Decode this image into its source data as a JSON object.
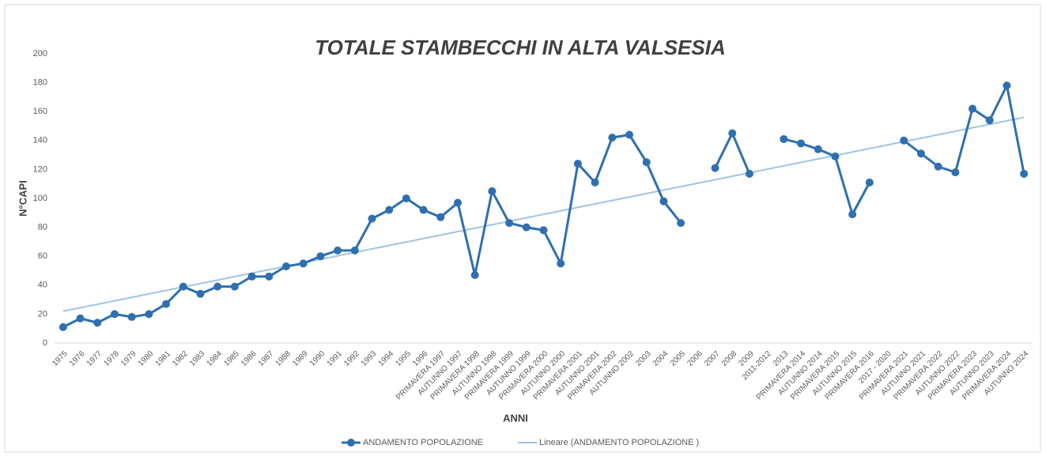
{
  "chart_data": {
    "type": "line",
    "title": "TOTALE STAMBECCHI IN ALTA VALSESIA",
    "x_label": "ANNI",
    "y_label": "N°CAPI",
    "categories": [
      "1975",
      "1976",
      "1977",
      "1978",
      "1979",
      "1980",
      "1981",
      "1982",
      "1983",
      "1984",
      "1985",
      "1986",
      "1987",
      "1988",
      "1989",
      "1990",
      "1991",
      "1992",
      "1993",
      "1994",
      "1995",
      "1996",
      "PRIMAVERA 1997",
      "AUTUNNO 1997",
      "PRIMAVERA 1998",
      "AUTUNNO 1998",
      "PRIMAVERA 1999",
      "AUTUNNO 1999",
      "PRIMAVERA 2000",
      "AUTUNNO 2000",
      "PRIMAVERA 2001",
      "AUTUNNO 2001",
      "PRIMAVERA 2002",
      "AUTUNNO 2002",
      "2003",
      "2004",
      "2005",
      "2006",
      "2007",
      "2008",
      "2009",
      "2011-2012",
      "2013",
      "PRIMAVERA 2014",
      "AUTUNNO 2014",
      "PRIMAVERA 2015",
      "AUTUNNO 2015",
      "PRIMAVERA 2016",
      "2017 - 2020",
      "PRIMAVERA 2021",
      "AUTUNNO 2021",
      "PRIMAVERA 2022",
      "AUTUNNO 2022",
      "PRIMAVERA 2023",
      "AUTUNNO 2023",
      "PRIMAVERA 2024",
      "AUTUNNO 2024"
    ],
    "series": [
      {
        "name": "ANDAMENTO POPOLAZIONE",
        "color": "#2e6fb0",
        "values": [
          11,
          17,
          14,
          20,
          18,
          20,
          27,
          39,
          34,
          39,
          39,
          46,
          46,
          53,
          55,
          60,
          64,
          64,
          86,
          92,
          100,
          92,
          87,
          97,
          47,
          105,
          83,
          80,
          78,
          55,
          124,
          111,
          142,
          144,
          125,
          98,
          83,
          null,
          121,
          145,
          117,
          null,
          141,
          138,
          134,
          129,
          89,
          111,
          null,
          140,
          131,
          122,
          118,
          162,
          154,
          178,
          117
        ]
      }
    ],
    "trendline": {
      "name": "Lineare (ANDAMENTO POPOLAZIONE )",
      "color": "#9dc3e6",
      "start": 22,
      "end": 156
    },
    "ylim": [
      0,
      200
    ],
    "yticks": [
      0,
      20,
      40,
      60,
      80,
      100,
      120,
      140,
      160,
      180,
      200
    ],
    "grid": false
  }
}
